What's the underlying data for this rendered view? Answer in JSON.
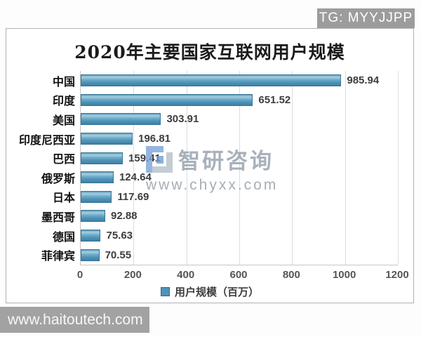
{
  "badges": {
    "tg": "TG: MYYJJPP",
    "site": "www.haitoutech.com"
  },
  "watermark": {
    "brand": "智研咨询",
    "url": "www.chyxx.com"
  },
  "chart_data": {
    "type": "bar",
    "orientation": "horizontal",
    "title": "2020年主要国家互联网用户规模",
    "categories": [
      "中国",
      "印度",
      "美国",
      "印度尼西亚",
      "巴西",
      "俄罗斯",
      "日本",
      "墨西哥",
      "德国",
      "菲律宾"
    ],
    "values": [
      985.94,
      651.52,
      303.91,
      196.81,
      159.41,
      124.64,
      117.69,
      92.88,
      75.63,
      70.55
    ],
    "value_labels": [
      "985.94",
      "651.52",
      "303.91",
      "196.81",
      "159.41",
      "124.64",
      "117.69",
      "92.88",
      "75.63",
      "70.55"
    ],
    "xlim": [
      0,
      1200
    ],
    "x_ticks": [
      0,
      200,
      400,
      600,
      800,
      1000,
      1200
    ],
    "legend": "用户规模（百万）",
    "legend_position": "bottom",
    "grid": true,
    "colors": {
      "bar": "#4f94b8",
      "bar_border": "#387595",
      "gridline": "#dddddd",
      "badge_gray": "#9c9c9c"
    }
  }
}
